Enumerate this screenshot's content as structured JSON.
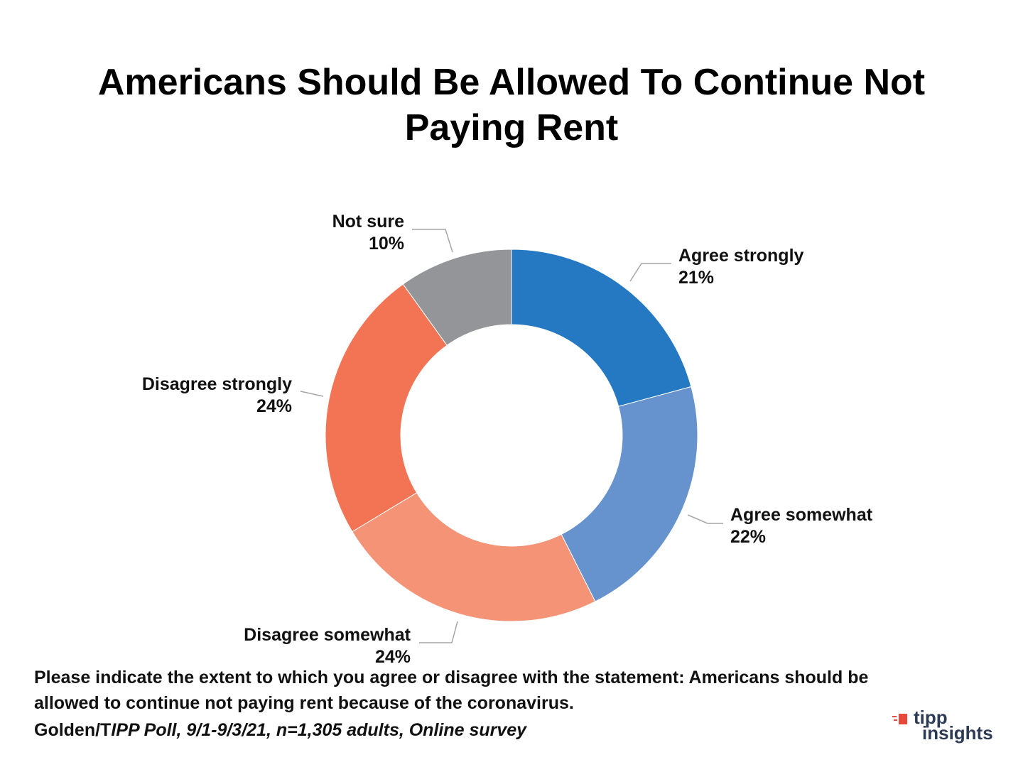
{
  "chart_data": {
    "type": "pie",
    "donut": true,
    "title": "Americans Should Be Allowed To Continue Not Paying Rent",
    "slices": [
      {
        "label": "Agree strongly",
        "value": 21,
        "value_label": "21%",
        "color": "#2479c2"
      },
      {
        "label": "Agree somewhat",
        "value": 22,
        "value_label": "22%",
        "color": "#6693cd"
      },
      {
        "label": "Disagree somewhat",
        "value": 24,
        "value_label": "24%",
        "color": "#f49375"
      },
      {
        "label": "Disagree strongly",
        "value": 24,
        "value_label": "24%",
        "color": "#f27454"
      },
      {
        "label": "Not sure",
        "value": 10,
        "value_label": "10%",
        "color": "#949599"
      }
    ]
  },
  "note": "Please indicate the extent to which you agree or disagree with the statement: Americans should be allowed to continue not paying rent because of the coronavirus.",
  "source": {
    "prefix": "Golden/T",
    "italic": "IPP Poll, 9/1-9/3/21, n=1,305 adults, Online survey"
  },
  "logo": {
    "line1": "tipp",
    "line2": "insights",
    "accent_color": "#e8473b",
    "text_color": "#2d3b55"
  }
}
